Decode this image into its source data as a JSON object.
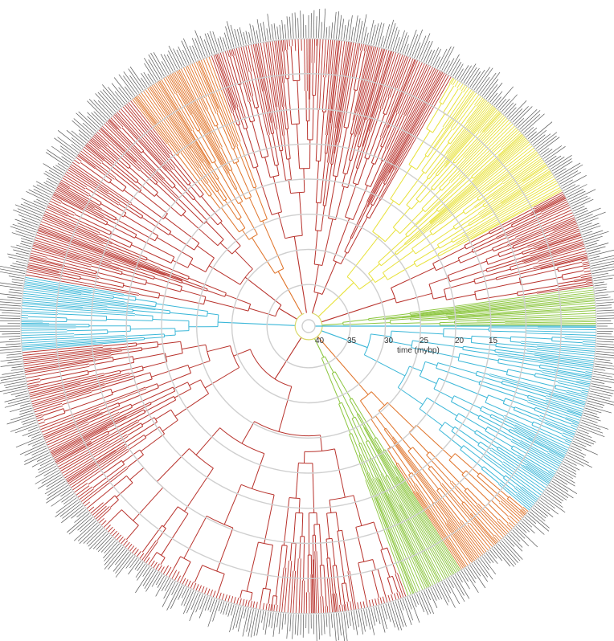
{
  "figure": {
    "type": "circular-phylogeny",
    "axis": {
      "label": "time (mybp)",
      "ticks": [
        "40",
        "35",
        "30",
        "25",
        "20",
        "15"
      ],
      "max_time": 40,
      "min_time": 0
    },
    "palette": {
      "red": "#b8322c",
      "dark_red": "#8e2a25",
      "orange": "#e0742a",
      "yellow": "#e8e23a",
      "light_yellow": "#d9d86a",
      "green": "#8cc63f",
      "cyan": "#3bb7d8",
      "grid": "#cfcfcf",
      "tips": "#222222"
    },
    "clades": [
      {
        "color": "red",
        "start": -88,
        "end": -60
      },
      {
        "color": "yellow",
        "start": -60,
        "end": -28
      },
      {
        "color": "red",
        "start": -28,
        "end": -8
      },
      {
        "color": "green",
        "start": -8,
        "end": 0
      },
      {
        "color": "cyan",
        "start": 0,
        "end": 40
      },
      {
        "color": "orange",
        "start": 40,
        "end": 58
      },
      {
        "color": "green",
        "start": 58,
        "end": 70
      },
      {
        "color": "red",
        "start": 70,
        "end": 175
      },
      {
        "color": "cyan",
        "start": 175,
        "end": 190
      },
      {
        "color": "red",
        "start": 190,
        "end": 232
      },
      {
        "color": "orange",
        "start": 232,
        "end": 250
      },
      {
        "color": "red",
        "start": 250,
        "end": 272
      }
    ]
  }
}
